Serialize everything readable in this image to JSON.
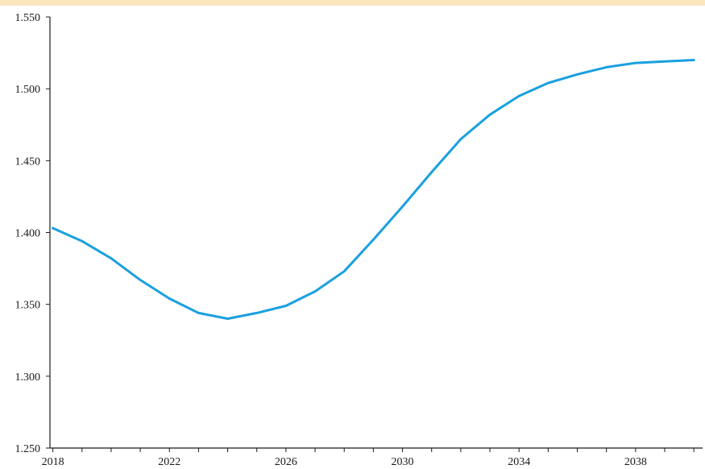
{
  "chart_data": {
    "type": "line",
    "title": "",
    "xlabel": "",
    "ylabel": "",
    "xlim": [
      2017.9,
      2040.3
    ],
    "ylim": [
      1.25,
      1.55
    ],
    "grid": false,
    "legend": "none",
    "y_ticks": [
      "1.250",
      "1.300",
      "1.350",
      "1.400",
      "1.450",
      "1.500",
      "1.550"
    ],
    "x_ticks": [
      "2018",
      "2022",
      "2026",
      "2030",
      "2034",
      "2038"
    ],
    "series": [
      {
        "color": "#1aa0e0",
        "x": [
          2018,
          2019,
          2020,
          2021,
          2022,
          2023,
          2024,
          2025,
          2026,
          2027,
          2028,
          2029,
          2030,
          2031,
          2032,
          2033,
          2034,
          2035,
          2036,
          2037,
          2038,
          2039,
          2040
        ],
        "values": [
          1.403,
          1.394,
          1.382,
          1.367,
          1.354,
          1.344,
          1.34,
          1.344,
          1.349,
          1.359,
          1.373,
          1.395,
          1.418,
          1.442,
          1.465,
          1.482,
          1.495,
          1.504,
          1.51,
          1.515,
          1.518,
          1.519,
          1.52
        ]
      }
    ]
  }
}
